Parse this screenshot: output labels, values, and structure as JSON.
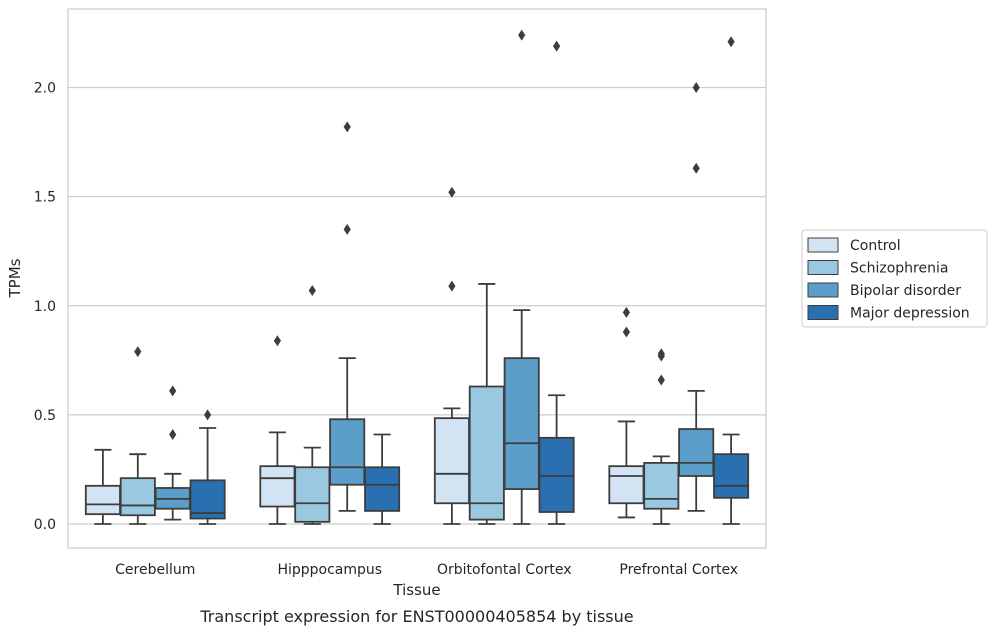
{
  "caption": "Transcript expression for ENST00000405854 by tissue",
  "chart_data": {
    "type": "boxplot",
    "xlabel": "Tissue",
    "ylabel": "TPMs",
    "ylim": [
      -0.11,
      2.36
    ],
    "yticks": [
      0.0,
      0.5,
      1.0,
      1.5,
      2.0
    ],
    "ytick_labels": [
      "0.0",
      "0.5",
      "1.0",
      "1.5",
      "2.0"
    ],
    "grid": "horizontal",
    "legend_position": "right-outside",
    "categories": [
      "Cerebellum",
      "Hipppocampus",
      "Orbitofontal Cortex",
      "Prefrontal Cortex"
    ],
    "series": [
      {
        "name": "Control",
        "color": "#d2e3f3",
        "boxes": [
          {
            "whislo": 0.0,
            "q1": 0.045,
            "med": 0.09,
            "q3": 0.175,
            "whishi": 0.34,
            "fliers": []
          },
          {
            "whislo": 0.0,
            "q1": 0.08,
            "med": 0.21,
            "q3": 0.265,
            "whishi": 0.42,
            "fliers": [
              0.84
            ]
          },
          {
            "whislo": 0.0,
            "q1": 0.095,
            "med": 0.23,
            "q3": 0.485,
            "whishi": 0.53,
            "fliers": [
              1.09,
              1.52
            ]
          },
          {
            "whislo": 0.03,
            "q1": 0.095,
            "med": 0.22,
            "q3": 0.265,
            "whishi": 0.47,
            "fliers": [
              0.88,
              0.97
            ]
          }
        ]
      },
      {
        "name": "Schizophrenia",
        "color": "#9ac8e0",
        "boxes": [
          {
            "whislo": 0.0,
            "q1": 0.04,
            "med": 0.085,
            "q3": 0.21,
            "whishi": 0.32,
            "fliers": [
              0.79
            ]
          },
          {
            "whislo": 0.0,
            "q1": 0.01,
            "med": 0.095,
            "q3": 0.26,
            "whishi": 0.35,
            "fliers": [
              1.07
            ]
          },
          {
            "whislo": 0.0,
            "q1": 0.02,
            "med": 0.095,
            "q3": 0.63,
            "whishi": 1.1,
            "fliers": []
          },
          {
            "whislo": 0.0,
            "q1": 0.07,
            "med": 0.115,
            "q3": 0.28,
            "whishi": 0.31,
            "fliers": [
              0.66,
              0.77,
              0.78
            ]
          }
        ]
      },
      {
        "name": "Bipolar disorder",
        "color": "#5a9ec9",
        "boxes": [
          {
            "whislo": 0.02,
            "q1": 0.07,
            "med": 0.115,
            "q3": 0.165,
            "whishi": 0.23,
            "fliers": [
              0.41,
              0.61
            ]
          },
          {
            "whislo": 0.06,
            "q1": 0.18,
            "med": 0.26,
            "q3": 0.48,
            "whishi": 0.76,
            "fliers": [
              1.35,
              1.82
            ]
          },
          {
            "whislo": 0.0,
            "q1": 0.16,
            "med": 0.37,
            "q3": 0.76,
            "whishi": 0.98,
            "fliers": [
              2.24
            ]
          },
          {
            "whislo": 0.06,
            "q1": 0.22,
            "med": 0.28,
            "q3": 0.435,
            "whishi": 0.61,
            "fliers": [
              1.63,
              2.0
            ]
          }
        ]
      },
      {
        "name": "Major depression",
        "color": "#2a70b1",
        "boxes": [
          {
            "whislo": 0.0,
            "q1": 0.025,
            "med": 0.05,
            "q3": 0.2,
            "whishi": 0.44,
            "fliers": [
              0.5
            ]
          },
          {
            "whislo": 0.0,
            "q1": 0.06,
            "med": 0.18,
            "q3": 0.26,
            "whishi": 0.41,
            "fliers": []
          },
          {
            "whislo": 0.0,
            "q1": 0.055,
            "med": 0.22,
            "q3": 0.395,
            "whishi": 0.59,
            "fliers": [
              2.19
            ]
          },
          {
            "whislo": 0.0,
            "q1": 0.12,
            "med": 0.175,
            "q3": 0.32,
            "whishi": 0.41,
            "fliers": [
              2.21
            ]
          }
        ]
      }
    ]
  }
}
